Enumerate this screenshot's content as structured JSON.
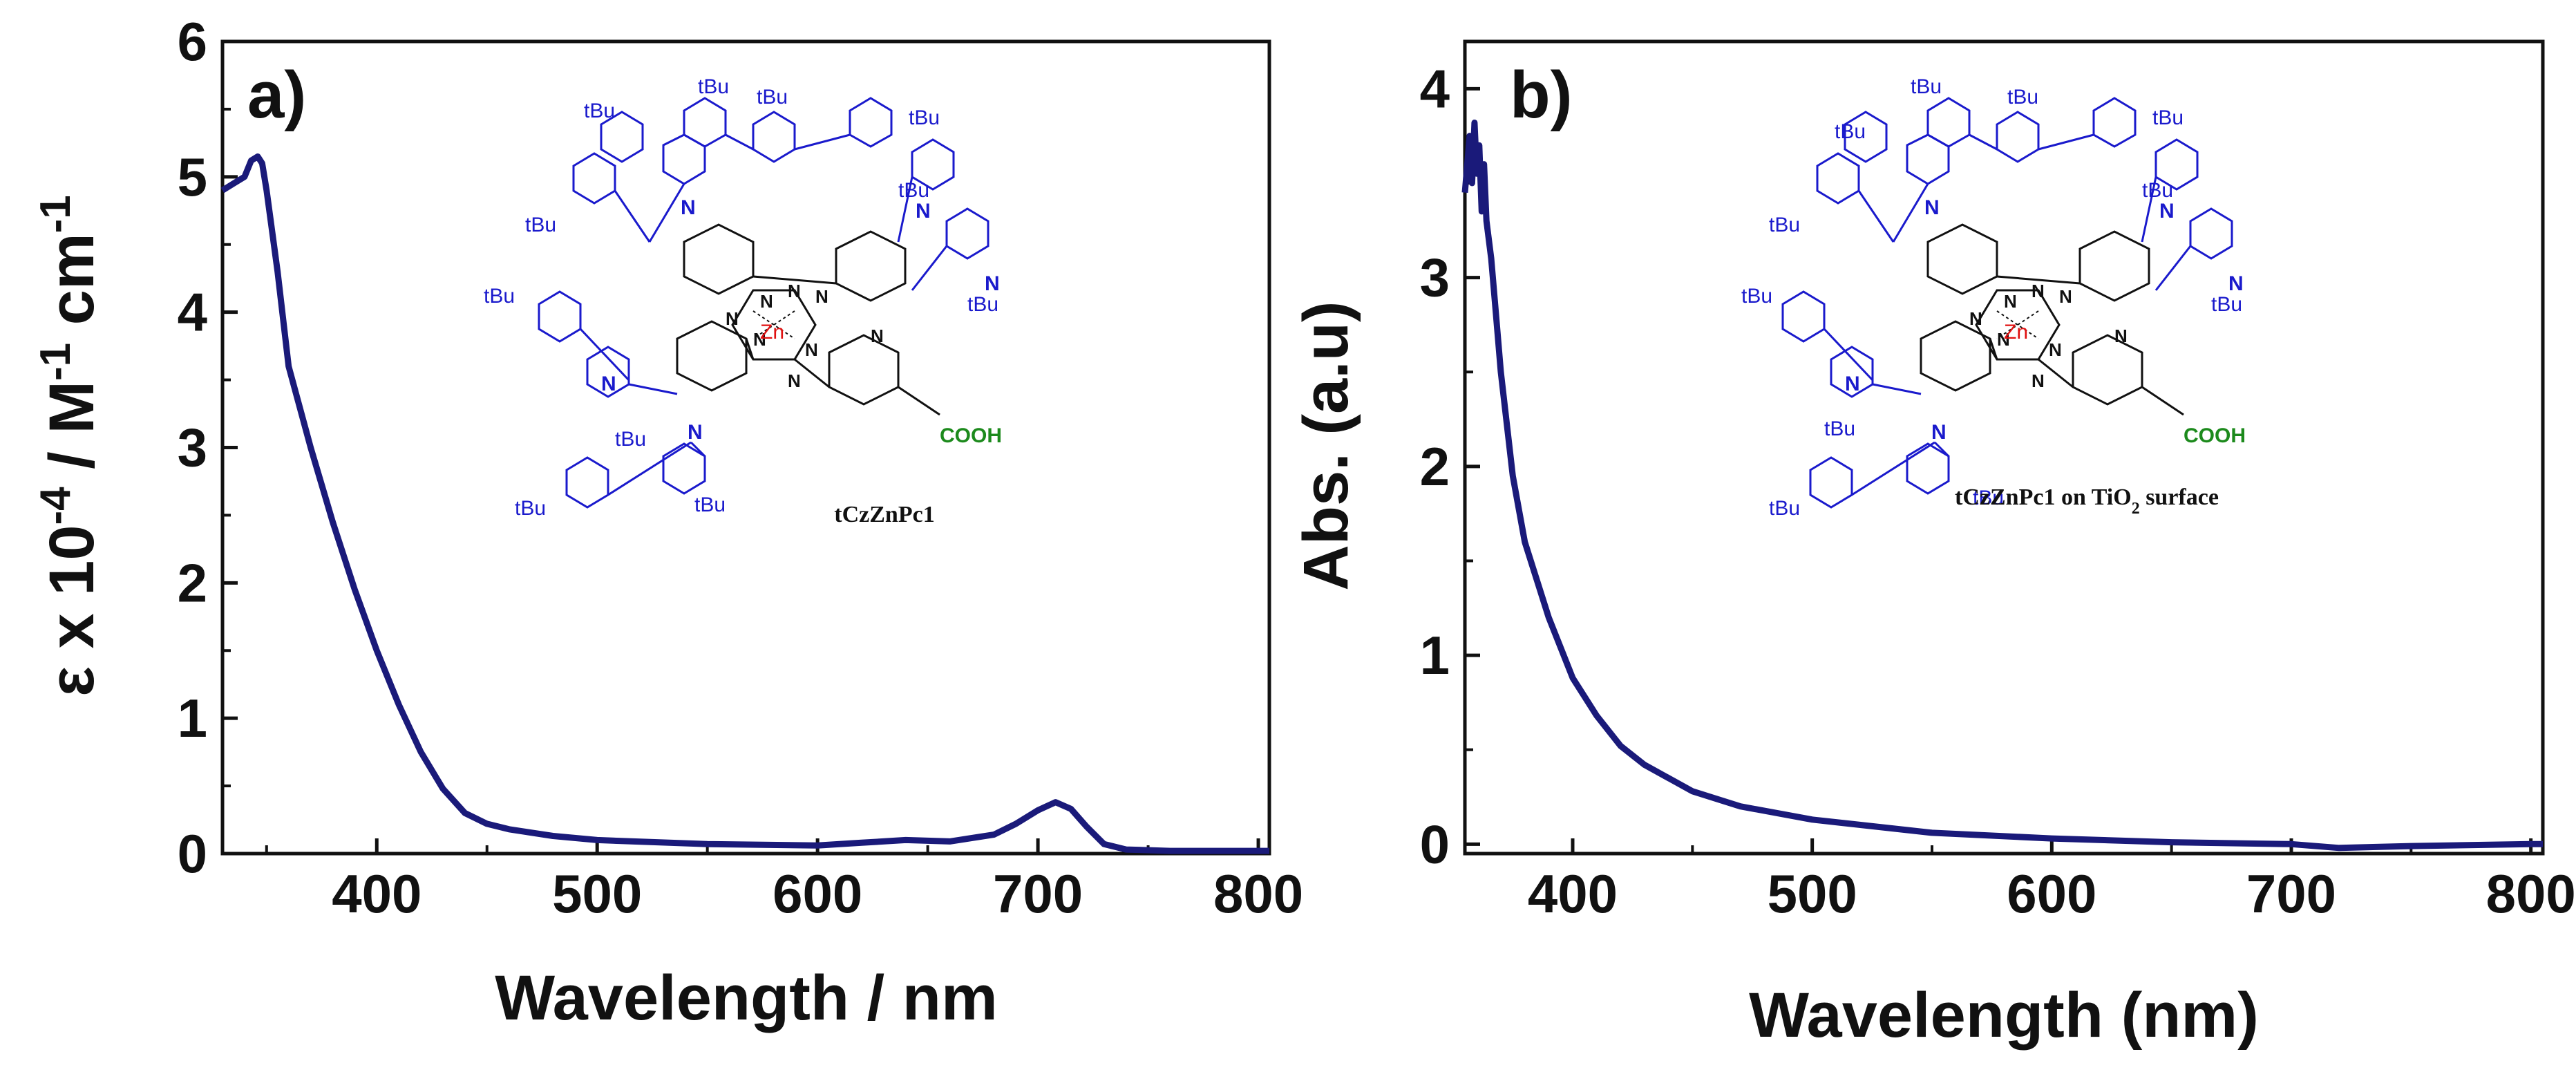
{
  "chart_data": [
    {
      "type": "line",
      "panel_label": "a)",
      "xlabel": "Wavelength / nm",
      "ylabel": "ε x 10-4 / M-1 cm-1",
      "ylabel_parts": {
        "base": "ε x 10",
        "exp1": "-4",
        "mid": " / M",
        "exp2": "-1",
        "tail": " cm",
        "exp3": "-1"
      },
      "xlim": [
        330,
        805
      ],
      "ylim": [
        0,
        6
      ],
      "xticks": [
        400,
        500,
        600,
        700,
        800
      ],
      "yticks": [
        0,
        1,
        2,
        3,
        4,
        5,
        6
      ],
      "line_color": "#1a1a7a",
      "series": [
        {
          "name": "tCzZnPc1",
          "x": [
            330,
            335,
            340,
            343,
            346,
            348,
            350,
            355,
            360,
            370,
            380,
            390,
            400,
            410,
            420,
            430,
            440,
            450,
            460,
            480,
            500,
            550,
            600,
            620,
            640,
            660,
            680,
            690,
            700,
            708,
            715,
            722,
            730,
            740,
            760,
            780,
            805
          ],
          "y": [
            4.9,
            4.95,
            5.0,
            5.12,
            5.15,
            5.1,
            4.9,
            4.3,
            3.6,
            3.0,
            2.45,
            1.95,
            1.5,
            1.1,
            0.75,
            0.48,
            0.3,
            0.22,
            0.18,
            0.13,
            0.1,
            0.07,
            0.06,
            0.08,
            0.1,
            0.09,
            0.14,
            0.22,
            0.32,
            0.38,
            0.33,
            0.2,
            0.07,
            0.03,
            0.02,
            0.02,
            0.02
          ]
        }
      ],
      "inset": {
        "molecule": "tCzZnPc1",
        "caption": "tCzZnPc1",
        "substituent": "tBu",
        "metal": "Zn",
        "acid": "COOH",
        "atom": "N"
      }
    },
    {
      "type": "line",
      "panel_label": "b)",
      "xlabel": "Wavelength (nm)",
      "ylabel": "Abs. (a.u)",
      "xlim": [
        355,
        805
      ],
      "ylim": [
        -0.05,
        4.25
      ],
      "xticks": [
        400,
        500,
        600,
        700,
        800
      ],
      "yticks": [
        0,
        1,
        2,
        3,
        4
      ],
      "line_color": "#1a1a7a",
      "series": [
        {
          "name": "tCzZnPc1 on TiO2 surface",
          "x": [
            355,
            357,
            358,
            359,
            360,
            361,
            362,
            363,
            364,
            366,
            368,
            370,
            375,
            380,
            390,
            400,
            410,
            420,
            430,
            450,
            470,
            500,
            550,
            600,
            650,
            700,
            720,
            750,
            800,
            805
          ],
          "y": [
            3.45,
            3.75,
            3.5,
            3.82,
            3.55,
            3.7,
            3.35,
            3.6,
            3.3,
            3.1,
            2.8,
            2.5,
            1.95,
            1.6,
            1.2,
            0.88,
            0.68,
            0.52,
            0.42,
            0.28,
            0.2,
            0.13,
            0.06,
            0.03,
            0.01,
            0.0,
            -0.02,
            -0.01,
            0.0,
            0.0
          ]
        }
      ],
      "inset": {
        "molecule": "tCzZnPc1",
        "caption_main": "tCzZnPc1 on TiO",
        "caption_sub": "2",
        "caption_tail": " surface",
        "substituent": "tBu",
        "metal": "Zn",
        "acid": "COOH",
        "atom": "N"
      }
    }
  ]
}
